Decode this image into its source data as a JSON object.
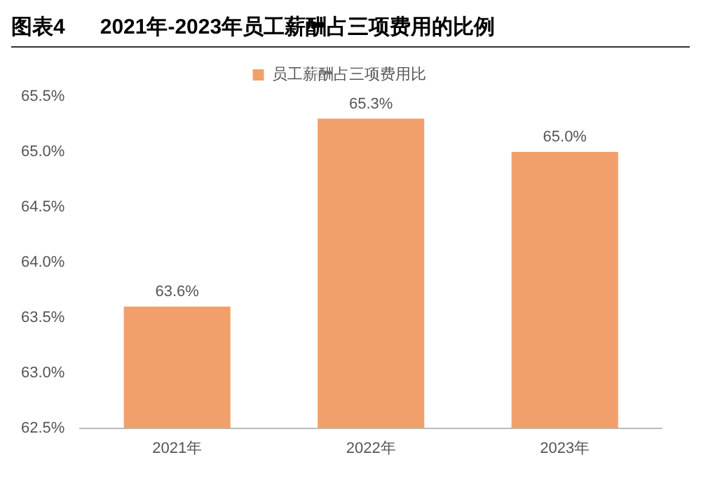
{
  "chart_data": {
    "type": "bar",
    "title": "图表4      2021年-2023年员工薪酬占三项费用的比例",
    "categories": [
      "2021年",
      "2022年",
      "2023年"
    ],
    "series": [
      {
        "name": "员工薪酬占三项费用比",
        "color": "#f2a06b",
        "values": [
          63.6,
          65.3,
          65.0
        ],
        "value_labels": [
          "63.6%",
          "65.3%",
          "65.0%"
        ]
      }
    ],
    "ylim": [
      62.5,
      65.5
    ],
    "yticks": [
      {
        "value": 62.5,
        "label": "62.5%"
      },
      {
        "value": 63.0,
        "label": "63.0%"
      },
      {
        "value": 63.5,
        "label": "63.5%"
      },
      {
        "value": 64.0,
        "label": "64.0%"
      },
      {
        "value": 64.5,
        "label": "64.5%"
      },
      {
        "value": 65.0,
        "label": "65.0%"
      },
      {
        "value": 65.5,
        "label": "65.5%"
      }
    ],
    "grid": false,
    "legend": "top"
  }
}
